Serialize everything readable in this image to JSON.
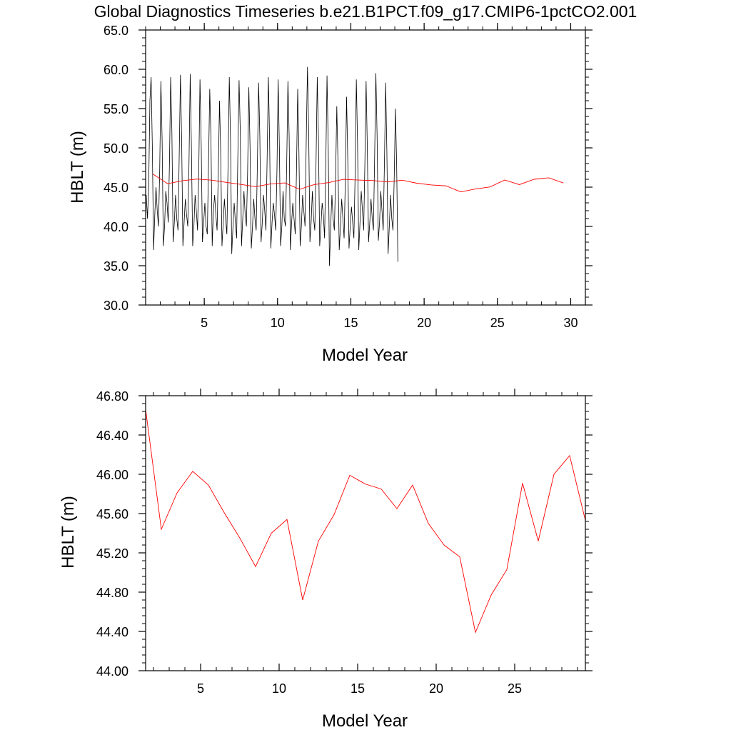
{
  "title": "Global Diagnostics Timeseries b.e21.B1PCT.f09_g17.CMIP6-1pctCO2.001",
  "colors": {
    "monthly": "#000000",
    "annual": "#ff0000",
    "background": "#ffffff"
  },
  "chart_data": [
    {
      "type": "line",
      "title": "Global Diagnostics Timeseries b.e21.B1PCT.f09_g17.CMIP6-1pctCO2.001",
      "xlabel": "Model Year",
      "ylabel": "HBLT (m)",
      "xlim": [
        1,
        31
      ],
      "ylim": [
        30,
        65
      ],
      "x_ticks": [
        5,
        10,
        15,
        20,
        25,
        30
      ],
      "x_tick_labels": [
        "5",
        "10",
        "15",
        "20",
        "25",
        "30"
      ],
      "y_ticks": [
        30,
        35,
        40,
        45,
        50,
        55,
        60,
        65
      ],
      "y_tick_labels": [
        "30.0",
        "35.0",
        "40.0",
        "45.0",
        "50.0",
        "55.0",
        "60.0",
        "65.0"
      ],
      "grid": false,
      "series": [
        {
          "color": "#000000",
          "x_start": 1.0417,
          "x_step": 0.08333,
          "values": [
            44.0,
            41.0,
            45.0,
            56.0,
            59.0,
            50.0,
            37.0,
            41.5,
            45.0,
            42.0,
            40.0,
            47.0,
            58.5,
            51.0,
            37.5,
            40.0,
            44.5,
            43.0,
            40.5,
            48.0,
            59.0,
            52.0,
            38.0,
            40.5,
            44.0,
            41.0,
            39.5,
            49.0,
            59.3,
            51.0,
            37.5,
            40.5,
            43.5,
            41.5,
            40.0,
            48.0,
            59.4,
            50.0,
            37.5,
            40.0,
            44.0,
            42.0,
            39.5,
            47.0,
            58.7,
            50.5,
            38.0,
            40.5,
            43.0,
            40.0,
            39.0,
            48.0,
            57.5,
            51.0,
            37.5,
            42.0,
            44.0,
            41.5,
            39.5,
            47.0,
            56.0,
            49.0,
            37.5,
            40.5,
            43.5,
            41.0,
            39.0,
            48.0,
            59.0,
            51.0,
            36.5,
            40.0,
            43.0,
            40.5,
            38.5,
            49.0,
            58.6,
            52.0,
            37.5,
            41.0,
            44.5,
            41.5,
            40.0,
            47.0,
            57.7,
            50.0,
            37.2,
            40.0,
            43.5,
            41.0,
            39.5,
            48.0,
            58.3,
            51.5,
            38.0,
            40.5,
            44.0,
            42.0,
            39.5,
            49.0,
            59.0,
            51.0,
            37.2,
            40.5,
            43.0,
            41.5,
            39.5,
            47.0,
            58.7,
            50.0,
            37.5,
            40.0,
            44.5,
            41.0,
            40.0,
            48.0,
            58.5,
            51.5,
            37.0,
            40.5,
            43.0,
            41.0,
            39.0,
            47.0,
            57.5,
            49.5,
            37.5,
            40.0,
            44.0,
            42.0,
            40.0,
            51.0,
            60.3,
            52.0,
            38.0,
            40.5,
            44.5,
            41.0,
            39.5,
            48.0,
            59.0,
            51.0,
            37.5,
            40.0,
            43.0,
            41.5,
            38.5,
            48.0,
            59.2,
            50.0,
            35.0,
            40.0,
            44.0,
            41.0,
            39.5,
            46.0,
            55.3,
            48.0,
            37.0,
            40.0,
            43.5,
            41.0,
            38.5,
            46.0,
            56.5,
            48.5,
            37.2,
            40.0,
            42.5,
            40.5,
            38.5,
            46.5,
            58.7,
            50.5,
            37.0,
            40.5,
            44.5,
            42.0,
            39.5,
            48.0,
            58.5,
            50.0,
            38.0,
            40.5,
            43.5,
            41.0,
            39.5,
            49.0,
            59.5,
            51.5,
            38.2,
            40.5,
            44.5,
            42.0,
            39.5,
            48.0,
            58.3,
            49.5,
            36.5,
            40.0,
            44.0,
            41.0,
            39.5,
            46.0,
            55.0,
            48.0,
            35.5
          ]
        },
        {
          "color": "#ff0000",
          "x": [
            1.5,
            2.5,
            3.5,
            4.5,
            5.5,
            6.5,
            7.5,
            8.5,
            9.5,
            10.5,
            11.5,
            12.5,
            13.5,
            14.5,
            15.5,
            16.5,
            17.5,
            18.5,
            19.5,
            20.5,
            21.5,
            22.5,
            23.5,
            24.5,
            25.5,
            26.5,
            27.5,
            28.5,
            29.5
          ],
          "values": [
            46.66,
            45.44,
            45.81,
            46.03,
            45.89,
            45.61,
            45.35,
            45.06,
            45.4,
            45.54,
            44.72,
            45.32,
            45.59,
            45.99,
            45.9,
            45.85,
            45.65,
            45.89,
            45.5,
            45.28,
            45.16,
            44.39,
            44.77,
            45.03,
            45.91,
            45.32,
            46.0,
            46.19,
            45.53
          ]
        }
      ]
    },
    {
      "type": "line",
      "xlabel": "Model Year",
      "ylabel": "HBLT (m)",
      "xlim": [
        1.5,
        29.5
      ],
      "ylim": [
        44.0,
        46.8
      ],
      "x_ticks": [
        5,
        10,
        15,
        20,
        25
      ],
      "x_tick_labels": [
        "5",
        "10",
        "15",
        "20",
        "25"
      ],
      "y_ticks": [
        44.0,
        44.4,
        44.8,
        45.2,
        45.6,
        46.0,
        46.4,
        46.8
      ],
      "y_tick_labels": [
        "44.00",
        "44.40",
        "44.80",
        "45.20",
        "45.60",
        "46.00",
        "46.40",
        "46.80"
      ],
      "grid": false,
      "series": [
        {
          "color": "#ff0000",
          "x": [
            1.5,
            2.5,
            3.5,
            4.5,
            5.5,
            6.5,
            7.5,
            8.5,
            9.5,
            10.5,
            11.5,
            12.5,
            13.5,
            14.5,
            15.5,
            16.5,
            17.5,
            18.5,
            19.5,
            20.5,
            21.5,
            22.5,
            23.5,
            24.5,
            25.5,
            26.5,
            27.5,
            28.5,
            29.5
          ],
          "values": [
            46.66,
            45.44,
            45.81,
            46.03,
            45.89,
            45.61,
            45.35,
            45.06,
            45.4,
            45.54,
            44.72,
            45.32,
            45.59,
            45.99,
            45.9,
            45.85,
            45.65,
            45.89,
            45.5,
            45.28,
            45.16,
            44.39,
            44.77,
            45.03,
            45.91,
            45.32,
            46.0,
            46.19,
            45.53
          ]
        }
      ]
    }
  ]
}
